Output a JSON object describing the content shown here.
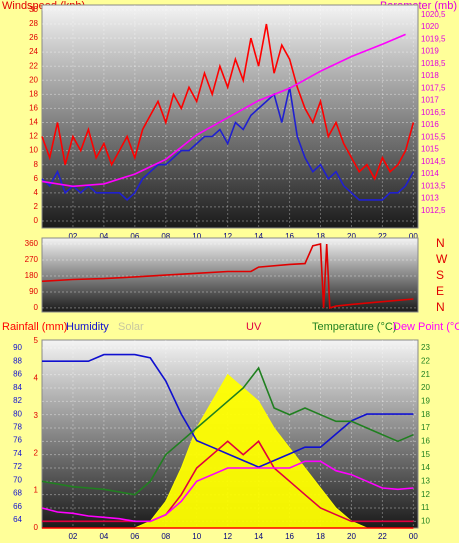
{
  "chart_data": [
    {
      "type": "line",
      "ylabel": "Windspeed (kph)",
      "y2label": "Barometer (mb)",
      "x": [
        0,
        0.5,
        1,
        1.5,
        2,
        2.5,
        3,
        3.5,
        4,
        4.5,
        5,
        5.5,
        6,
        6.5,
        7,
        7.5,
        8,
        8.5,
        9,
        9.5,
        10,
        10.5,
        11,
        11.5,
        12,
        12.5,
        13,
        13.5,
        14,
        14.5,
        15,
        15.5,
        16,
        16.5,
        17,
        17.5,
        18,
        18.5,
        19,
        19.5,
        20,
        20.5,
        21,
        21.5,
        22,
        22.5,
        23,
        23.5,
        24
      ],
      "xlim": [
        0,
        24.3
      ],
      "xticks": [
        {
          "value": 2,
          "label": "02"
        },
        {
          "value": 4,
          "label": "04"
        },
        {
          "value": 6,
          "label": "06"
        },
        {
          "value": 8,
          "label": "08"
        },
        10,
        12,
        14,
        16,
        18,
        20,
        22,
        {
          "value": 24,
          "label": "00"
        }
      ],
      "ylim": [
        -1,
        30.7
      ],
      "yticks": [
        0,
        2,
        4,
        6,
        8,
        10,
        12,
        14,
        16,
        18,
        20,
        22,
        24,
        26,
        28,
        30
      ],
      "y2lim": [
        1011.8,
        1020.9
      ],
      "y2ticks": [
        {
          "value": 1012.5,
          "label": "1012,5"
        },
        1013,
        {
          "value": 1013.5,
          "label": "1013,5"
        },
        1014,
        {
          "value": 1014.5,
          "label": "1014,5"
        },
        1015,
        {
          "value": 1015.5,
          "label": "1015,5"
        },
        1016,
        {
          "value": 1016.5,
          "label": "1016,5"
        },
        1017,
        {
          "value": 1017.5,
          "label": "1017,5"
        },
        1018,
        {
          "value": 1018.5,
          "label": "1018,5"
        },
        1019,
        {
          "value": 1019.5,
          "label": "1019,5"
        },
        1020,
        {
          "value": 1020.5,
          "label": "1020,5"
        }
      ],
      "grid": true,
      "series": [
        {
          "color": "#ff0000",
          "values": [
            12,
            9,
            14,
            8,
            12,
            10,
            13,
            9,
            11,
            8,
            10,
            12,
            9,
            13,
            15,
            17,
            14,
            18,
            16,
            19,
            17,
            21,
            18,
            22,
            19,
            23,
            20,
            26,
            22,
            28,
            21,
            25,
            23,
            19,
            16,
            14,
            17,
            12,
            14,
            11,
            9,
            7,
            8,
            6,
            9,
            7,
            8,
            10,
            14
          ]
        },
        {
          "color": "#2020d0",
          "values": [
            6,
            5,
            7,
            4,
            5,
            4,
            5,
            4,
            4,
            4,
            4,
            3,
            4,
            6,
            7,
            8,
            8,
            9,
            10,
            10,
            11,
            12,
            12,
            13,
            11,
            14,
            13,
            15,
            16,
            17,
            18,
            14,
            19,
            12,
            9,
            7,
            8,
            6,
            7,
            5,
            4,
            3,
            3,
            3,
            3,
            4,
            4,
            5,
            7
          ]
        },
        {
          "color": "#ff00ff",
          "axis": "y2",
          "x": [
            0,
            2,
            4,
            6,
            8,
            10,
            12,
            14,
            16,
            18,
            20,
            22,
            23.5
          ],
          "values": [
            1013.7,
            1013.5,
            1013.6,
            1014,
            1014.6,
            1015.6,
            1016.3,
            1017,
            1017.5,
            1018.2,
            1018.8,
            1019.3,
            1019.7
          ]
        }
      ]
    },
    {
      "type": "line",
      "x": [
        0,
        2,
        4,
        6,
        8,
        10,
        12,
        13.5,
        14,
        16,
        17,
        17.5,
        18,
        18.2,
        18.4,
        18.6,
        19,
        20,
        22,
        24
      ],
      "xlim": [
        0,
        24.3
      ],
      "ylim": [
        -23,
        394
      ],
      "yticks": [
        0,
        90,
        180,
        270,
        360
      ],
      "y2lim": [
        -23,
        394
      ],
      "y2ticks": [
        {
          "value": 360,
          "label": "N"
        },
        {
          "value": 270,
          "label": "W"
        },
        {
          "value": 180,
          "label": "S"
        },
        {
          "value": 90,
          "label": "E"
        },
        {
          "value": 0,
          "label": "N"
        }
      ],
      "grid": true,
      "series": [
        {
          "color": "#e00000",
          "values": [
            150,
            160,
            165,
            175,
            185,
            195,
            205,
            205,
            230,
            245,
            250,
            350,
            360,
            0,
            360,
            0,
            10,
            20,
            35,
            50
          ]
        }
      ]
    },
    {
      "type": "line",
      "x": [
        0,
        1,
        2,
        3,
        4,
        5,
        6,
        7,
        8,
        9,
        10,
        11,
        12,
        13,
        14,
        15,
        16,
        17,
        18,
        19,
        20,
        21,
        22,
        23,
        24
      ],
      "xlim": [
        0,
        24.3
      ],
      "xticks": [
        {
          "value": 2,
          "label": "02"
        },
        {
          "value": 4,
          "label": "04"
        },
        {
          "value": 6,
          "label": "06"
        },
        {
          "value": 8,
          "label": "08"
        },
        10,
        12,
        14,
        16,
        18,
        20,
        22,
        {
          "value": 24,
          "label": "00"
        }
      ],
      "ylim": [
        62.8,
        91.2
      ],
      "yticks": [
        64,
        66,
        68,
        70,
        72,
        74,
        76,
        78,
        80,
        82,
        84,
        86,
        88,
        90
      ],
      "y2lim": [
        9.5,
        23.6
      ],
      "y2ticks": [
        10,
        11,
        12,
        13,
        14,
        15,
        16,
        17,
        18,
        19,
        20,
        21,
        22,
        23
      ],
      "y3lim": [
        0,
        5.03
      ],
      "y3ticks": [
        0,
        1,
        2,
        3,
        4,
        5
      ],
      "grid": true,
      "series": [
        {
          "name": "Solar",
          "color": "#ffff00",
          "style": "area",
          "axis": "y2",
          "values": [
            9.5,
            9.5,
            9.5,
            9.5,
            9.5,
            9.5,
            9.5,
            10,
            11.5,
            14,
            17,
            19,
            21,
            20,
            19,
            17,
            15.5,
            14,
            12.5,
            11,
            10,
            9.5,
            9.5,
            9.5,
            9.5
          ]
        },
        {
          "name": "Rainfall (mm)",
          "color": "#ff0000",
          "axis": "y3",
          "values": [
            0,
            0,
            0,
            0,
            0,
            0,
            0,
            0,
            0,
            0,
            0,
            0,
            0,
            0,
            0,
            0,
            0,
            0,
            0,
            0,
            0,
            0,
            0,
            0,
            0
          ]
        },
        {
          "name": "Humidity",
          "color": "#1010d0",
          "values": [
            88,
            88,
            88,
            88,
            89,
            89,
            89,
            88.5,
            85,
            80,
            76,
            75,
            74,
            73,
            72,
            73,
            74,
            75,
            75,
            77,
            79,
            80,
            80,
            80,
            80
          ]
        },
        {
          "name": "UV",
          "color": "#e00040",
          "axis": "y2",
          "values": [
            10,
            10,
            10,
            10,
            10,
            10,
            10,
            10,
            10.5,
            12,
            14,
            15,
            16,
            15,
            16,
            14,
            13,
            12,
            11,
            10.5,
            10,
            10,
            10,
            10,
            10
          ]
        },
        {
          "name": "Temperature (°C)",
          "color": "#208020",
          "axis": "y2",
          "values": [
            13,
            12.8,
            12.6,
            12.5,
            12.4,
            12.2,
            12,
            13,
            15,
            16,
            17,
            18,
            19,
            20,
            21.5,
            18.5,
            18,
            18.5,
            18,
            17.5,
            17.5,
            17,
            16.5,
            16,
            16.5
          ]
        },
        {
          "name": "Dew Point (°C)",
          "color": "#ff00ff",
          "axis": "y2",
          "values": [
            11,
            10.7,
            10.6,
            10.4,
            10.3,
            10.2,
            10,
            10,
            10.5,
            11.5,
            13,
            13.5,
            14,
            14,
            14,
            14,
            14,
            14.5,
            14.5,
            13.8,
            13.5,
            13,
            12.5,
            12.4,
            12.5
          ]
        }
      ]
    }
  ]
}
